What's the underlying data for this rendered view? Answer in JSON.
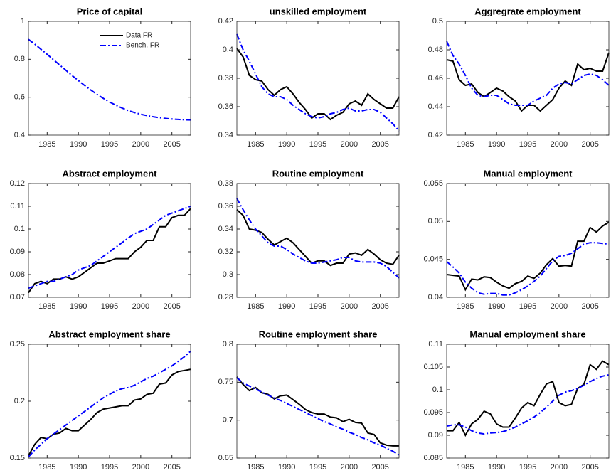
{
  "chart_data": [
    {
      "type": "line",
      "title": "Price of capital",
      "legend": "upper-right",
      "x": [
        1982,
        1983,
        1984,
        1985,
        1986,
        1987,
        1988,
        1989,
        1990,
        1991,
        1992,
        1993,
        1994,
        1995,
        1996,
        1997,
        1998,
        1999,
        2000,
        2001,
        2002,
        2003,
        2004,
        2005,
        2006,
        2007,
        2008
      ],
      "xlim": [
        1982,
        2008
      ],
      "xticks": [
        1985,
        1990,
        1995,
        2000,
        2005
      ],
      "ylim": [
        0.4,
        1
      ],
      "yticks": [
        0.4,
        0.6,
        0.8,
        1
      ],
      "series": [
        {
          "name": "Data FR",
          "color": "#000000",
          "linestyle": "solid",
          "values": [
            null,
            null,
            null,
            null,
            null,
            null,
            null,
            null,
            null,
            null,
            null,
            null,
            null,
            null,
            null,
            null,
            null,
            null,
            null,
            null,
            null,
            null,
            null,
            null,
            null,
            null,
            null
          ]
        },
        {
          "name": "Bench. FR",
          "color": "#0000ff",
          "linestyle": "dashdot",
          "values": [
            0.905,
            0.88,
            0.853,
            0.826,
            0.798,
            0.77,
            0.742,
            0.714,
            0.688,
            0.662,
            0.638,
            0.615,
            0.594,
            0.575,
            0.558,
            0.543,
            0.53,
            0.519,
            0.51,
            0.503,
            0.497,
            0.492,
            0.488,
            0.485,
            0.483,
            0.481,
            0.48
          ]
        }
      ]
    },
    {
      "type": "line",
      "title": "unskilled employment",
      "x": [
        1982,
        1983,
        1984,
        1985,
        1986,
        1987,
        1988,
        1989,
        1990,
        1991,
        1992,
        1993,
        1994,
        1995,
        1996,
        1997,
        1998,
        1999,
        2000,
        2001,
        2002,
        2003,
        2004,
        2005,
        2006,
        2007,
        2008
      ],
      "xlim": [
        1982,
        2008
      ],
      "xticks": [
        1985,
        1990,
        1995,
        2000,
        2005
      ],
      "ylim": [
        0.34,
        0.42
      ],
      "yticks": [
        0.34,
        0.36,
        0.38,
        0.4,
        0.42
      ],
      "series": [
        {
          "name": "Data FR",
          "color": "#000000",
          "linestyle": "solid",
          "values": [
            0.401,
            0.395,
            0.382,
            0.379,
            0.378,
            0.372,
            0.368,
            0.372,
            0.374,
            0.369,
            0.363,
            0.358,
            0.352,
            0.355,
            0.355,
            0.351,
            0.354,
            0.356,
            0.362,
            0.364,
            0.361,
            0.369,
            0.365,
            0.362,
            0.359,
            0.359,
            0.367
          ]
        },
        {
          "name": "Bench. FR",
          "color": "#0000ff",
          "linestyle": "dashdot",
          "values": [
            0.411,
            0.4,
            0.392,
            0.383,
            0.374,
            0.369,
            0.367,
            0.367,
            0.365,
            0.361,
            0.358,
            0.355,
            0.353,
            0.352,
            0.353,
            0.355,
            0.356,
            0.358,
            0.359,
            0.357,
            0.357,
            0.358,
            0.358,
            0.356,
            0.352,
            0.348,
            0.343
          ]
        }
      ]
    },
    {
      "type": "line",
      "title": "Aggregrate employment",
      "x": [
        1982,
        1983,
        1984,
        1985,
        1986,
        1987,
        1988,
        1989,
        1990,
        1991,
        1992,
        1993,
        1994,
        1995,
        1996,
        1997,
        1998,
        1999,
        2000,
        2001,
        2002,
        2003,
        2004,
        2005,
        2006,
        2007,
        2008
      ],
      "xlim": [
        1982,
        2008
      ],
      "xticks": [
        1985,
        1990,
        1995,
        2000,
        2005
      ],
      "ylim": [
        0.42,
        0.5
      ],
      "yticks": [
        0.42,
        0.44,
        0.46,
        0.48,
        0.5
      ],
      "series": [
        {
          "name": "Data FR",
          "color": "#000000",
          "linestyle": "solid",
          "values": [
            0.473,
            0.472,
            0.459,
            0.455,
            0.456,
            0.45,
            0.447,
            0.45,
            0.453,
            0.451,
            0.447,
            0.444,
            0.437,
            0.441,
            0.441,
            0.437,
            0.441,
            0.445,
            0.453,
            0.458,
            0.455,
            0.47,
            0.466,
            0.467,
            0.465,
            0.465,
            0.478
          ]
        },
        {
          "name": "Bench. FR",
          "color": "#0000ff",
          "linestyle": "dashdot",
          "values": [
            0.486,
            0.476,
            0.47,
            0.462,
            0.453,
            0.448,
            0.447,
            0.448,
            0.448,
            0.445,
            0.442,
            0.441,
            0.441,
            0.441,
            0.444,
            0.446,
            0.448,
            0.453,
            0.456,
            0.457,
            0.456,
            0.459,
            0.462,
            0.463,
            0.462,
            0.459,
            0.455
          ]
        }
      ]
    },
    {
      "type": "line",
      "title": "Abstract employment",
      "x": [
        1982,
        1983,
        1984,
        1985,
        1986,
        1987,
        1988,
        1989,
        1990,
        1991,
        1992,
        1993,
        1994,
        1995,
        1996,
        1997,
        1998,
        1999,
        2000,
        2001,
        2002,
        2003,
        2004,
        2005,
        2006,
        2007,
        2008
      ],
      "xlim": [
        1982,
        2008
      ],
      "xticks": [
        1985,
        1990,
        1995,
        2000,
        2005
      ],
      "ylim": [
        0.07,
        0.12
      ],
      "yticks": [
        0.07,
        0.08,
        0.09,
        0.1,
        0.11,
        0.12
      ],
      "series": [
        {
          "name": "Data FR",
          "color": "#000000",
          "linestyle": "solid",
          "values": [
            0.072,
            0.076,
            0.077,
            0.076,
            0.078,
            0.078,
            0.079,
            0.078,
            0.079,
            0.081,
            0.083,
            0.085,
            0.085,
            0.086,
            0.087,
            0.087,
            0.087,
            0.09,
            0.092,
            0.095,
            0.095,
            0.101,
            0.101,
            0.105,
            0.106,
            0.106,
            0.109
          ]
        },
        {
          "name": "Bench. FR",
          "color": "#0000ff",
          "linestyle": "dashdot",
          "values": [
            0.074,
            0.075,
            0.076,
            0.077,
            0.077,
            0.078,
            0.079,
            0.08,
            0.082,
            0.083,
            0.084,
            0.086,
            0.088,
            0.09,
            0.092,
            0.094,
            0.096,
            0.098,
            0.099,
            0.1,
            0.102,
            0.104,
            0.106,
            0.107,
            0.108,
            0.109,
            0.11
          ]
        }
      ]
    },
    {
      "type": "line",
      "title": "Routine employment",
      "x": [
        1982,
        1983,
        1984,
        1985,
        1986,
        1987,
        1988,
        1989,
        1990,
        1991,
        1992,
        1993,
        1994,
        1995,
        1996,
        1997,
        1998,
        1999,
        2000,
        2001,
        2002,
        2003,
        2004,
        2005,
        2006,
        2007,
        2008
      ],
      "xlim": [
        1982,
        2008
      ],
      "xticks": [
        1985,
        1990,
        1995,
        2000,
        2005
      ],
      "ylim": [
        0.28,
        0.38
      ],
      "yticks": [
        0.28,
        0.3,
        0.32,
        0.34,
        0.36,
        0.38
      ],
      "series": [
        {
          "name": "Data FR",
          "color": "#000000",
          "linestyle": "solid",
          "values": [
            0.357,
            0.352,
            0.34,
            0.339,
            0.337,
            0.331,
            0.326,
            0.329,
            0.332,
            0.328,
            0.322,
            0.316,
            0.31,
            0.312,
            0.312,
            0.308,
            0.31,
            0.31,
            0.318,
            0.319,
            0.317,
            0.322,
            0.318,
            0.313,
            0.31,
            0.309,
            0.317
          ]
        },
        {
          "name": "Bench. FR",
          "color": "#0000ff",
          "linestyle": "dashdot",
          "values": [
            0.367,
            0.357,
            0.348,
            0.34,
            0.334,
            0.328,
            0.325,
            0.325,
            0.322,
            0.318,
            0.315,
            0.312,
            0.31,
            0.31,
            0.311,
            0.312,
            0.313,
            0.315,
            0.315,
            0.312,
            0.311,
            0.311,
            0.311,
            0.31,
            0.307,
            0.302,
            0.297
          ]
        }
      ]
    },
    {
      "type": "line",
      "title": "Manual employment",
      "x": [
        1982,
        1983,
        1984,
        1985,
        1986,
        1987,
        1988,
        1989,
        1990,
        1991,
        1992,
        1993,
        1994,
        1995,
        1996,
        1997,
        1998,
        1999,
        2000,
        2001,
        2002,
        2003,
        2004,
        2005,
        2006,
        2007,
        2008
      ],
      "xlim": [
        1982,
        2008
      ],
      "xticks": [
        1985,
        1990,
        1995,
        2000,
        2005
      ],
      "ylim": [
        0.04,
        0.055
      ],
      "yticks": [
        0.04,
        0.045,
        0.05,
        0.055
      ],
      "series": [
        {
          "name": "Data FR",
          "color": "#000000",
          "linestyle": "solid",
          "values": [
            0.043,
            0.0429,
            0.0428,
            0.041,
            0.0424,
            0.0423,
            0.0427,
            0.0426,
            0.042,
            0.0415,
            0.0412,
            0.0418,
            0.0421,
            0.0428,
            0.0425,
            0.0432,
            0.0443,
            0.0451,
            0.0441,
            0.0442,
            0.0441,
            0.0474,
            0.0474,
            0.0492,
            0.0486,
            0.0494,
            0.0499
          ]
        },
        {
          "name": "Bench. FR",
          "color": "#0000ff",
          "linestyle": "dashdot",
          "values": [
            0.0447,
            0.044,
            0.0432,
            0.042,
            0.0412,
            0.0406,
            0.0404,
            0.0405,
            0.0405,
            0.0403,
            0.0403,
            0.0406,
            0.041,
            0.0415,
            0.0421,
            0.0428,
            0.0438,
            0.0448,
            0.0454,
            0.0455,
            0.0458,
            0.0464,
            0.047,
            0.0472,
            0.0472,
            0.0471,
            0.047
          ]
        }
      ]
    },
    {
      "type": "line",
      "title": "Abstract employment share",
      "x": [
        1982,
        1983,
        1984,
        1985,
        1986,
        1987,
        1988,
        1989,
        1990,
        1991,
        1992,
        1993,
        1994,
        1995,
        1996,
        1997,
        1998,
        1999,
        2000,
        2001,
        2002,
        2003,
        2004,
        2005,
        2006,
        2007,
        2008
      ],
      "xlim": [
        1982,
        2008
      ],
      "xticks": [
        1985,
        1990,
        1995,
        2000,
        2005
      ],
      "ylim": [
        0.15,
        0.25
      ],
      "yticks": [
        0.15,
        0.2,
        0.25
      ],
      "series": [
        {
          "name": "Data FR",
          "color": "#000000",
          "linestyle": "solid",
          "values": [
            0.152,
            0.162,
            0.168,
            0.167,
            0.171,
            0.172,
            0.176,
            0.174,
            0.174,
            0.179,
            0.184,
            0.19,
            0.193,
            0.194,
            0.195,
            0.196,
            0.196,
            0.201,
            0.202,
            0.206,
            0.207,
            0.215,
            0.216,
            0.223,
            0.226,
            0.227,
            0.228
          ]
        },
        {
          "name": "Bench. FR",
          "color": "#0000ff",
          "linestyle": "dashdot",
          "values": [
            0.151,
            0.157,
            0.162,
            0.167,
            0.171,
            0.175,
            0.179,
            0.183,
            0.187,
            0.191,
            0.195,
            0.199,
            0.203,
            0.206,
            0.209,
            0.211,
            0.212,
            0.214,
            0.217,
            0.22,
            0.222,
            0.225,
            0.228,
            0.231,
            0.235,
            0.239,
            0.244
          ]
        }
      ]
    },
    {
      "type": "line",
      "title": "Routine employment share",
      "x": [
        1982,
        1983,
        1984,
        1985,
        1986,
        1987,
        1988,
        1989,
        1990,
        1991,
        1992,
        1993,
        1994,
        1995,
        1996,
        1997,
        1998,
        1999,
        2000,
        2001,
        2002,
        2003,
        2004,
        2005,
        2006,
        2007,
        2008
      ],
      "xlim": [
        1982,
        2008
      ],
      "xticks": [
        1985,
        1990,
        1995,
        2000,
        2005
      ],
      "ylim": [
        0.65,
        0.8
      ],
      "yticks": [
        0.65,
        0.7,
        0.75,
        0.8
      ],
      "series": [
        {
          "name": "Data FR",
          "color": "#000000",
          "linestyle": "solid",
          "values": [
            0.757,
            0.747,
            0.739,
            0.743,
            0.736,
            0.734,
            0.728,
            0.732,
            0.733,
            0.727,
            0.721,
            0.714,
            0.71,
            0.708,
            0.708,
            0.704,
            0.703,
            0.698,
            0.701,
            0.697,
            0.696,
            0.683,
            0.681,
            0.67,
            0.667,
            0.666,
            0.666
          ]
        },
        {
          "name": "Bench. FR",
          "color": "#0000ff",
          "linestyle": "dashdot",
          "values": [
            0.756,
            0.749,
            0.745,
            0.741,
            0.737,
            0.733,
            0.729,
            0.726,
            0.722,
            0.718,
            0.714,
            0.71,
            0.706,
            0.702,
            0.698,
            0.695,
            0.691,
            0.688,
            0.684,
            0.681,
            0.677,
            0.674,
            0.67,
            0.667,
            0.663,
            0.659,
            0.654
          ]
        }
      ]
    },
    {
      "type": "line",
      "title": "Manual employment share",
      "x": [
        1982,
        1983,
        1984,
        1985,
        1986,
        1987,
        1988,
        1989,
        1990,
        1991,
        1992,
        1993,
        1994,
        1995,
        1996,
        1997,
        1998,
        1999,
        2000,
        2001,
        2002,
        2003,
        2004,
        2005,
        2006,
        2007,
        2008
      ],
      "xlim": [
        1982,
        2008
      ],
      "xticks": [
        1985,
        1990,
        1995,
        2000,
        2005
      ],
      "ylim": [
        0.085,
        0.11
      ],
      "yticks": [
        0.085,
        0.09,
        0.095,
        0.1,
        0.105,
        0.11
      ],
      "series": [
        {
          "name": "Data FR",
          "color": "#000000",
          "linestyle": "solid",
          "values": [
            0.091,
            0.091,
            0.0928,
            0.09,
            0.0925,
            0.0935,
            0.0953,
            0.0947,
            0.0925,
            0.0918,
            0.0918,
            0.0938,
            0.096,
            0.0972,
            0.0965,
            0.099,
            0.1013,
            0.1018,
            0.0972,
            0.0965,
            0.0968,
            0.1003,
            0.1012,
            0.1055,
            0.1045,
            0.1063,
            0.1055
          ]
        },
        {
          "name": "Bench. FR",
          "color": "#0000ff",
          "linestyle": "dashdot",
          "values": [
            0.092,
            0.0923,
            0.0923,
            0.0918,
            0.091,
            0.0905,
            0.0903,
            0.0905,
            0.0906,
            0.0908,
            0.0912,
            0.0918,
            0.0925,
            0.0932,
            0.094,
            0.095,
            0.0962,
            0.0975,
            0.0988,
            0.0995,
            0.0998,
            0.1003,
            0.101,
            0.1018,
            0.1025,
            0.103,
            0.1033
          ]
        }
      ]
    }
  ]
}
